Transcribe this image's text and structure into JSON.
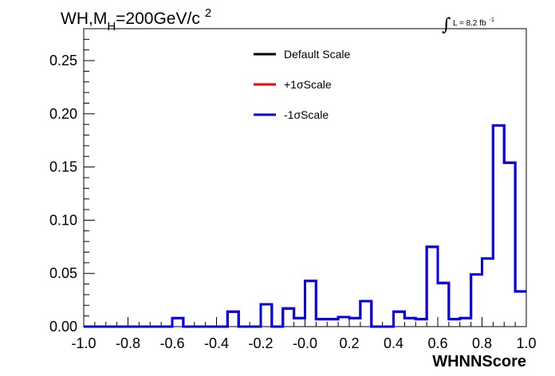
{
  "chart_data": {
    "type": "histogram",
    "title": {
      "prefix": "WH,M",
      "subscript": "H",
      "suffix": "=200GeV/c",
      "superscript": "2"
    },
    "luminosity": {
      "text": "L = 8.2 fb",
      "superscript": "-1"
    },
    "xlabel": "WHNNScore",
    "ylabel": "",
    "xlim": [
      -1.0,
      1.0
    ],
    "ylim": [
      0,
      0.28
    ],
    "x_ticks": [
      "-1.0",
      "-0.8",
      "-0.6",
      "-0.4",
      "-0.2",
      "-0.0",
      "0.2",
      "0.4",
      "0.6",
      "0.8",
      "1.0"
    ],
    "y_ticks": [
      "0.00",
      "0.05",
      "0.10",
      "0.15",
      "0.20",
      "0.25"
    ],
    "bin_edges": [
      -1.0,
      -0.95,
      -0.9,
      -0.85,
      -0.8,
      -0.75,
      -0.7,
      -0.65,
      -0.6,
      -0.55,
      -0.5,
      -0.45,
      -0.4,
      -0.35,
      -0.3,
      -0.25,
      -0.2,
      -0.15,
      -0.1,
      -0.05,
      0.0,
      0.05,
      0.1,
      0.15,
      0.2,
      0.25,
      0.3,
      0.35,
      0.4,
      0.45,
      0.5,
      0.55,
      0.6,
      0.65,
      0.7,
      0.75,
      0.8,
      0.85,
      0.9,
      0.95,
      1.0
    ],
    "legend_position": "top-center",
    "series": [
      {
        "name": "Default Scale",
        "color": "#000000",
        "values": [
          0,
          0,
          0,
          0,
          0,
          0,
          0,
          0,
          0.008,
          0,
          0,
          0,
          0,
          0.014,
          0,
          0,
          0.021,
          0,
          0.017,
          0.008,
          0.043,
          0.007,
          0.007,
          0.009,
          0.008,
          0.024,
          0,
          0,
          0.014,
          0.008,
          0.007,
          0.075,
          0.041,
          0.007,
          0.008,
          0.049,
          0.064,
          0.189,
          0.154,
          0.033
        ]
      },
      {
        "name": "+1σScale",
        "color": "#ff0000",
        "values": [
          0,
          0,
          0,
          0,
          0,
          0,
          0,
          0,
          0.008,
          0,
          0,
          0,
          0,
          0.014,
          0,
          0,
          0.021,
          0,
          0.017,
          0.008,
          0.043,
          0.007,
          0.007,
          0.009,
          0.008,
          0.024,
          0,
          0,
          0.014,
          0.008,
          0.007,
          0.075,
          0.041,
          0.007,
          0.008,
          0.049,
          0.064,
          0.189,
          0.154,
          0.033
        ]
      },
      {
        "name": "-1σScale",
        "color": "#0000ee",
        "values": [
          0,
          0,
          0,
          0,
          0,
          0,
          0,
          0,
          0.008,
          0,
          0,
          0,
          0,
          0.014,
          0,
          0,
          0.021,
          0,
          0.017,
          0.008,
          0.043,
          0.007,
          0.007,
          0.009,
          0.008,
          0.024,
          0,
          0,
          0.014,
          0.008,
          0.007,
          0.075,
          0.041,
          0.007,
          0.008,
          0.049,
          0.064,
          0.189,
          0.154,
          0.033
        ]
      }
    ]
  }
}
